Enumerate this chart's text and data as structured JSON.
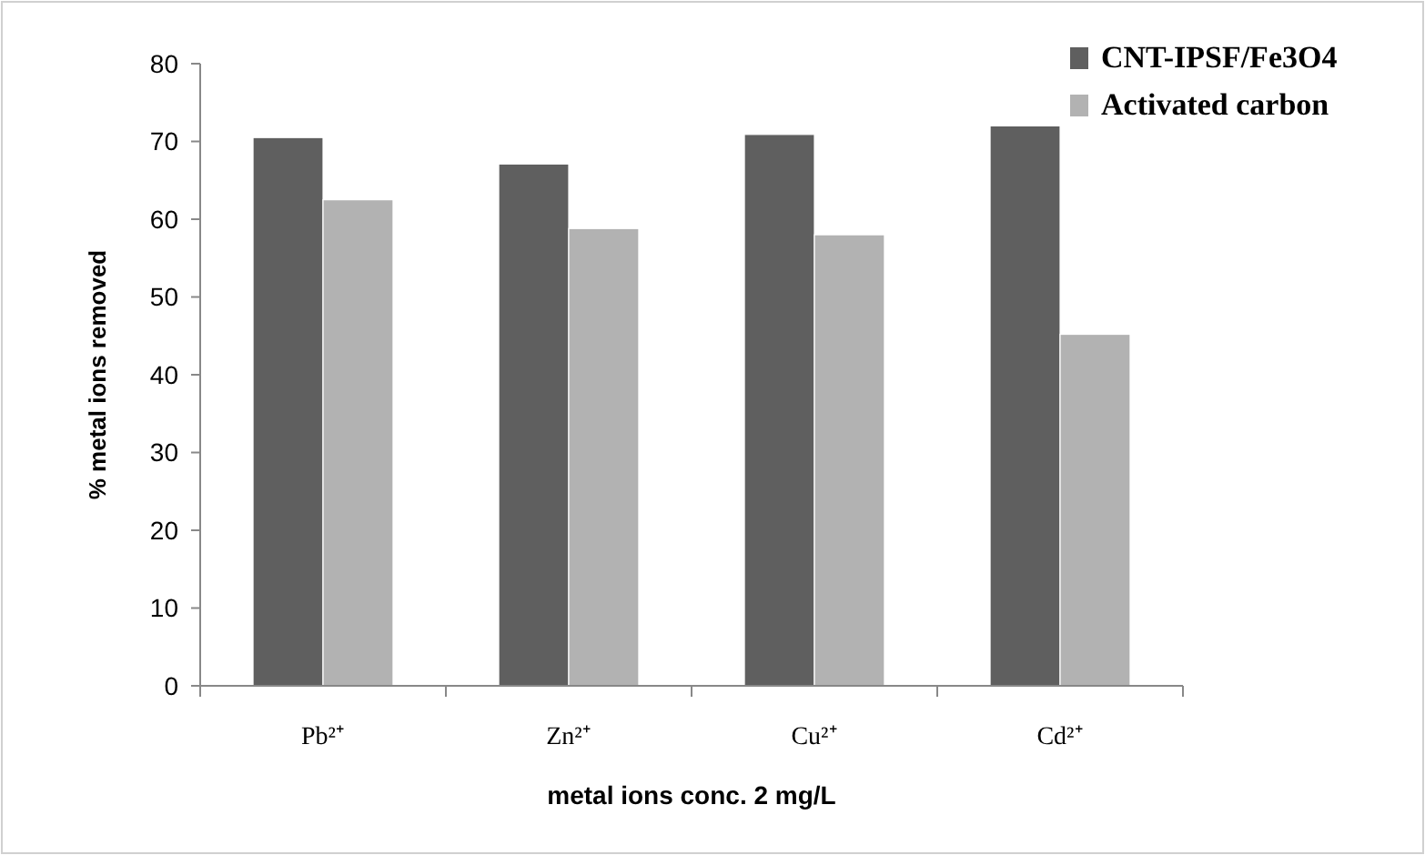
{
  "chart_data": {
    "type": "bar",
    "categories": [
      "Pb²⁺",
      "Zn²⁺",
      "Cu²⁺",
      "Cd²⁺"
    ],
    "series": [
      {
        "name": "CNT-IPSF/Fe3O4",
        "color": "#5f5f5f",
        "values": [
          70.5,
          67.1,
          70.9,
          72.0
        ]
      },
      {
        "name": "Activated carbon",
        "color": "#b2b2b2",
        "values": [
          62.5,
          58.8,
          58.0,
          45.2
        ]
      }
    ],
    "xlabel": "metal ions conc. 2 mg/L",
    "ylabel": "% metal ions removed",
    "ylim": [
      0,
      80
    ],
    "yticks": [
      0,
      10,
      20,
      30,
      40,
      50,
      60,
      70,
      80
    ],
    "grid": false,
    "legend": "top right"
  }
}
